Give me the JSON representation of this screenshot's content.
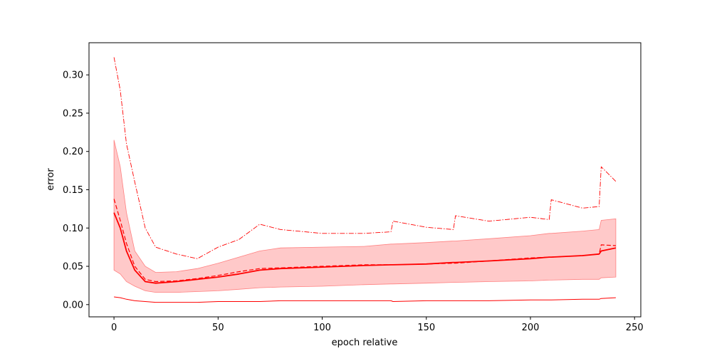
{
  "chart_data": {
    "type": "line",
    "xlabel": "epoch relative",
    "ylabel": "error",
    "xlim": [
      -12,
      253
    ],
    "ylim": [
      -0.016,
      0.342
    ],
    "xticks": [
      0,
      50,
      100,
      150,
      200,
      250
    ],
    "yticks": [
      0.0,
      0.05,
      0.1,
      0.15,
      0.2,
      0.25,
      0.3
    ],
    "xtick_labels": [
      "0",
      "50",
      "100",
      "150",
      "200",
      "250"
    ],
    "ytick_labels": [
      "0.00",
      "0.05",
      "0.10",
      "0.15",
      "0.20",
      "0.25",
      "0.30"
    ],
    "grid": false,
    "legend": "none",
    "colors": {
      "line": "#ff0000",
      "band": "#ffc0c0",
      "band_edge": "#ff8080"
    },
    "x": [
      0,
      3,
      6,
      10,
      15,
      20,
      30,
      40,
      50,
      60,
      70,
      80,
      100,
      120,
      133,
      134,
      150,
      163,
      164,
      180,
      200,
      209,
      210,
      225,
      233,
      234,
      241
    ],
    "series": [
      {
        "style": "solid",
        "values": [
          0.12,
          0.1,
          0.07,
          0.045,
          0.03,
          0.028,
          0.03,
          0.033,
          0.036,
          0.04,
          0.045,
          0.047,
          0.049,
          0.051,
          0.052,
          0.052,
          0.053,
          0.055,
          0.055,
          0.057,
          0.06,
          0.062,
          0.062,
          0.064,
          0.066,
          0.07,
          0.074
        ]
      },
      {
        "style": "dashed",
        "values": [
          0.138,
          0.11,
          0.08,
          0.05,
          0.033,
          0.03,
          0.031,
          0.034,
          0.038,
          0.043,
          0.047,
          0.048,
          0.05,
          0.052,
          0.052,
          0.052,
          0.053,
          0.054,
          0.054,
          0.057,
          0.061,
          0.062,
          0.062,
          0.064,
          0.066,
          0.078,
          0.077
        ]
      },
      {
        "style": "dashdot",
        "values": [
          0.323,
          0.28,
          0.21,
          0.16,
          0.1,
          0.075,
          0.066,
          0.06,
          0.075,
          0.085,
          0.105,
          0.098,
          0.093,
          0.093,
          0.095,
          0.109,
          0.101,
          0.098,
          0.116,
          0.109,
          0.114,
          0.111,
          0.137,
          0.126,
          0.128,
          0.18,
          0.161
        ]
      },
      {
        "style": "solid",
        "values": [
          0.01,
          0.009,
          0.007,
          0.005,
          0.004,
          0.003,
          0.003,
          0.003,
          0.004,
          0.004,
          0.004,
          0.005,
          0.005,
          0.005,
          0.005,
          0.004,
          0.005,
          0.005,
          0.005,
          0.005,
          0.006,
          0.006,
          0.006,
          0.007,
          0.007,
          0.008,
          0.009
        ]
      }
    ],
    "band": {
      "lower": [
        0.045,
        0.04,
        0.03,
        0.024,
        0.018,
        0.016,
        0.016,
        0.017,
        0.018,
        0.02,
        0.022,
        0.023,
        0.024,
        0.026,
        0.027,
        0.027,
        0.028,
        0.029,
        0.029,
        0.03,
        0.031,
        0.032,
        0.032,
        0.033,
        0.033,
        0.035,
        0.036
      ],
      "upper": [
        0.215,
        0.18,
        0.12,
        0.07,
        0.05,
        0.042,
        0.043,
        0.047,
        0.054,
        0.062,
        0.07,
        0.074,
        0.075,
        0.076,
        0.079,
        0.079,
        0.081,
        0.083,
        0.083,
        0.086,
        0.09,
        0.093,
        0.093,
        0.096,
        0.098,
        0.11,
        0.112
      ]
    }
  }
}
